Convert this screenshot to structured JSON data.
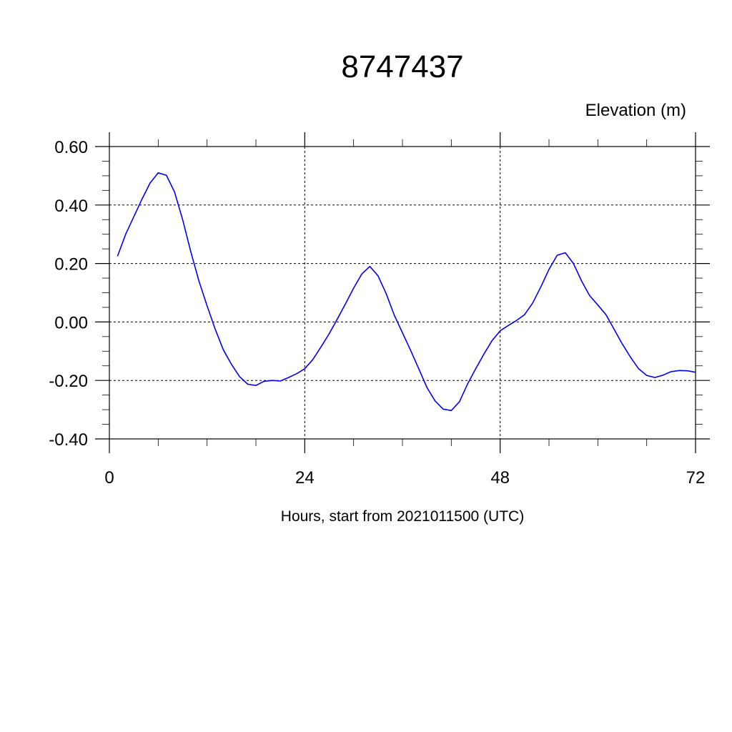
{
  "chart_data": {
    "type": "line",
    "title": "8747437",
    "ylabel": "Elevation (m)",
    "xlabel": "Hours, start from 2021011500 (UTC)",
    "xlim": [
      0,
      72
    ],
    "ylim": [
      -0.4,
      0.6
    ],
    "x_ticks": [
      0,
      24,
      48,
      72
    ],
    "x_tick_labels": [
      "0",
      "24",
      "48",
      "72"
    ],
    "y_ticks": [
      -0.4,
      -0.2,
      0.0,
      0.2,
      0.4,
      0.6
    ],
    "y_tick_labels": [
      "-0.40",
      "-0.20",
      "0.00",
      "0.20",
      "0.40",
      "0.60"
    ],
    "grid": true,
    "line_color": "#0000ff",
    "series": [
      {
        "x": [
          1,
          2,
          3,
          4,
          5,
          6,
          7,
          8,
          9,
          10,
          11,
          12,
          13,
          14,
          15,
          16,
          17,
          18,
          19,
          20,
          21,
          22,
          23,
          24,
          25,
          26,
          27,
          28,
          29,
          30,
          31,
          32,
          33,
          34,
          35,
          36,
          37,
          38,
          39,
          40,
          41,
          42,
          43,
          44,
          45,
          46,
          47,
          48,
          49,
          50,
          51,
          52,
          53,
          54,
          55,
          56,
          57,
          58,
          59,
          60,
          61,
          62,
          63,
          64,
          65,
          66,
          67,
          68,
          69,
          70,
          71,
          72
        ],
        "values": [
          0.225,
          0.3,
          0.36,
          0.42,
          0.475,
          0.51,
          0.502,
          0.445,
          0.35,
          0.24,
          0.14,
          0.055,
          -0.025,
          -0.095,
          -0.145,
          -0.187,
          -0.213,
          -0.217,
          -0.203,
          -0.2,
          -0.202,
          -0.19,
          -0.177,
          -0.16,
          -0.128,
          -0.085,
          -0.04,
          0.01,
          0.062,
          0.116,
          0.164,
          0.19,
          0.158,
          0.097,
          0.023,
          -0.037,
          -0.097,
          -0.16,
          -0.224,
          -0.27,
          -0.298,
          -0.303,
          -0.273,
          -0.212,
          -0.16,
          -0.11,
          -0.064,
          -0.03,
          -0.012,
          0.005,
          0.025,
          0.065,
          0.12,
          0.18,
          0.228,
          0.237,
          0.2,
          0.14,
          0.09,
          0.058,
          0.025,
          -0.025,
          -0.075,
          -0.12,
          -0.16,
          -0.183,
          -0.19,
          -0.182,
          -0.17,
          -0.166,
          -0.167,
          -0.172
        ]
      }
    ]
  }
}
